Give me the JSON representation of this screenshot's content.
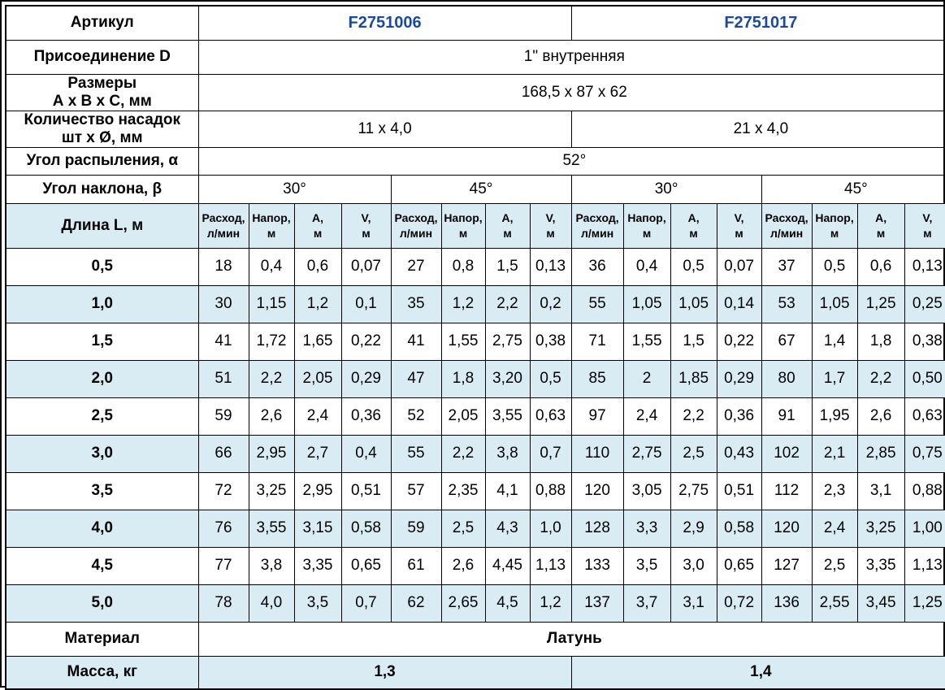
{
  "colors": {
    "stripe_blue": "#d9ecf4",
    "article_blue": "#1a4a9c",
    "border": "#000000",
    "background": "#ffffff"
  },
  "spec": {
    "article_label": "Артикул",
    "article_values": [
      "F2751006",
      "F2751017"
    ],
    "connection_label": "Присоединение D",
    "connection_value": "1\" внутренняя",
    "dimensions_label_line1": "Размеры",
    "dimensions_label_line2": "А х В х С, мм",
    "dimensions_value": "168,5 x 87 x 62",
    "nozzles_label_line1": "Количество насадок",
    "nozzles_label_line2": "шт х Ø, мм",
    "nozzles_values": [
      "11 x 4,0",
      "21 x 4,0"
    ],
    "spray_angle_label": "Угол распыления, α",
    "spray_angle_value": "52°",
    "tilt_angle_label": "Угол наклона, β",
    "tilt_angle_values": [
      "30°",
      "45°",
      "30°",
      "45°"
    ],
    "material_label": "Материал",
    "material_value": "Латунь",
    "mass_label": "Масса, кг",
    "mass_values": [
      "1,3",
      "1,4"
    ]
  },
  "table": {
    "length_header": "Длина L, м",
    "measure_headers": [
      {
        "line1": "Расход,",
        "line2": "л/мин",
        "key": "flow"
      },
      {
        "line1": "Напор,",
        "line2": "м",
        "key": "head"
      },
      {
        "line1": "А,",
        "line2": "м",
        "key": "a"
      },
      {
        "line1": "V,",
        "line2": "м",
        "key": "v"
      }
    ],
    "group_count": 4,
    "data_rows": [
      {
        "length": "0,5",
        "values": [
          "18",
          "0,4",
          "0,6",
          "0,07",
          "27",
          "0,8",
          "1,5",
          "0,13",
          "36",
          "0,4",
          "0,5",
          "0,07",
          "37",
          "0,5",
          "0,6",
          "0,13"
        ]
      },
      {
        "length": "1,0",
        "values": [
          "30",
          "1,15",
          "1,2",
          "0,1",
          "35",
          "1,2",
          "2,2",
          "0,2",
          "55",
          "1,05",
          "1,05",
          "0,14",
          "53",
          "1,05",
          "1,25",
          "0,25"
        ]
      },
      {
        "length": "1,5",
        "values": [
          "41",
          "1,72",
          "1,65",
          "0,22",
          "41",
          "1,55",
          "2,75",
          "0,38",
          "71",
          "1,55",
          "1,5",
          "0,22",
          "67",
          "1,4",
          "1,8",
          "0,38"
        ]
      },
      {
        "length": "2,0",
        "values": [
          "51",
          "2,2",
          "2,05",
          "0,29",
          "47",
          "1,8",
          "3,20",
          "0,5",
          "85",
          "2",
          "1,85",
          "0,29",
          "80",
          "1,7",
          "2,2",
          "0,50"
        ]
      },
      {
        "length": "2,5",
        "values": [
          "59",
          "2,6",
          "2,4",
          "0,36",
          "52",
          "2,05",
          "3,55",
          "0,63",
          "97",
          "2,4",
          "2,2",
          "0,36",
          "91",
          "1,95",
          "2,6",
          "0,63"
        ]
      },
      {
        "length": "3,0",
        "values": [
          "66",
          "2,95",
          "2,7",
          "0,4",
          "55",
          "2,2",
          "3,8",
          "0,7",
          "110",
          "2,75",
          "2,5",
          "0,43",
          "102",
          "2,1",
          "2,85",
          "0,75"
        ]
      },
      {
        "length": "3,5",
        "values": [
          "72",
          "3,25",
          "2,95",
          "0,51",
          "57",
          "2,35",
          "4,1",
          "0,88",
          "120",
          "3,05",
          "2,75",
          "0,51",
          "112",
          "2,3",
          "3,1",
          "0,88"
        ]
      },
      {
        "length": "4,0",
        "values": [
          "76",
          "3,55",
          "3,15",
          "0,58",
          "59",
          "2,5",
          "4,3",
          "1,0",
          "128",
          "3,3",
          "2,9",
          "0,58",
          "120",
          "2,4",
          "3,25",
          "1,00"
        ]
      },
      {
        "length": "4,5",
        "values": [
          "77",
          "3,8",
          "3,35",
          "0,65",
          "61",
          "2,6",
          "4,45",
          "1,13",
          "133",
          "3,5",
          "3,0",
          "0,65",
          "127",
          "2,5",
          "3,35",
          "1,13"
        ]
      },
      {
        "length": "5,0",
        "values": [
          "78",
          "4,0",
          "3,5",
          "0,7",
          "62",
          "2,65",
          "4,5",
          "1,2",
          "137",
          "3,7",
          "3,1",
          "0,72",
          "136",
          "2,55",
          "3,45",
          "1,25"
        ]
      }
    ]
  }
}
